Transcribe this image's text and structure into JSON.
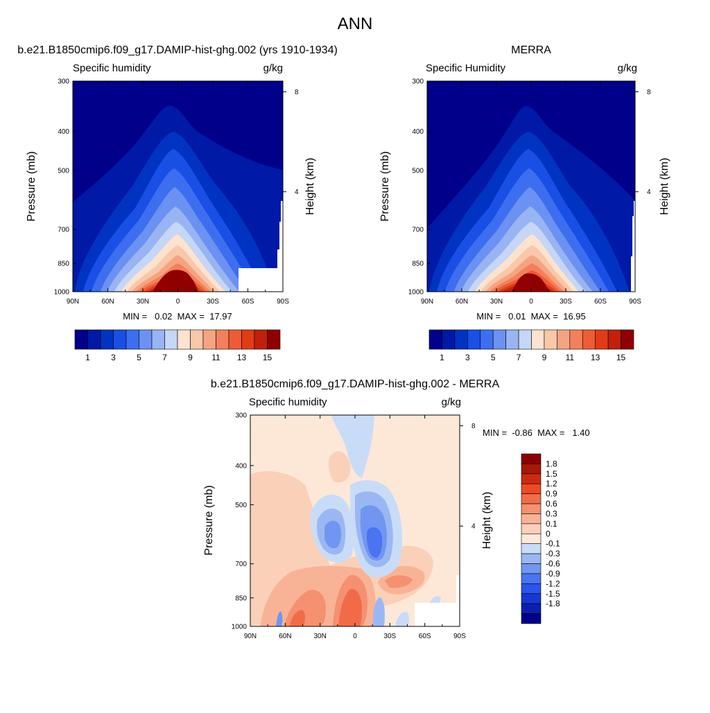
{
  "figure": {
    "title": "ANN"
  },
  "panels": [
    {
      "id": "model",
      "title": "b.e21.B1850cmip6.f09_g17.DAMIP-hist-ghg.002 (yrs 1910-1934)",
      "left_label": "Specific humidity",
      "right_label": "g/kg",
      "ylabel": "Pressure (mb)",
      "y2label": "Height (km)",
      "stats_text": "MIN =   0.02  MAX =  17.97"
    },
    {
      "id": "obs",
      "title": "MERRA",
      "left_label": "Specific Humidity",
      "right_label": "g/kg",
      "ylabel": "Pressure (mb)",
      "y2label": "Height (km)",
      "stats_text": "MIN =   0.01  MAX =  16.95"
    },
    {
      "id": "diff",
      "title": "b.e21.B1850cmip6.f09_g17.DAMIP-hist-ghg.002 - MERRA",
      "left_label": "Specific humidity",
      "right_label": "g/kg",
      "ylabel": "Pressure (mb)",
      "y2label": "Height (km)",
      "stats_text": "MIN =  -0.86  MAX =   1.40"
    }
  ],
  "colors": {
    "humidity_levels": [
      "#00008b",
      "#0019a6",
      "#0033c2",
      "#1a4fe6",
      "#3d6ef0",
      "#6b91f2",
      "#98b4f2",
      "#c5d6f7",
      "#fde3cf",
      "#f9c7aa",
      "#f5a482",
      "#f3805c",
      "#ef5b36",
      "#e23b18",
      "#c2200c",
      "#900000"
    ],
    "diff_levels": [
      "#00008b",
      "#0a1fb0",
      "#1637d6",
      "#2a55ee",
      "#4a74f0",
      "#7196f1",
      "#9bb7f3",
      "#c9dcf7",
      "#fde8d8",
      "#fbd0b8",
      "#f8b396",
      "#f59070",
      "#f26b48",
      "#ee4a24",
      "#cc2a10",
      "#a81808",
      "#8b0000"
    ]
  },
  "chart_data": [
    {
      "panel": "model",
      "type": "heatmap",
      "x_ticks": [
        "90N",
        "60N",
        "30N",
        "0",
        "30S",
        "60S",
        "90S"
      ],
      "x_range": [
        90,
        -90
      ],
      "y_ticks": [
        "300",
        "400",
        "500",
        "700",
        "850",
        "1000"
      ],
      "y_range_mb": [
        1000,
        300
      ],
      "y_scale": "log",
      "y2_ticks": [
        "8",
        "4"
      ],
      "colorbar_labels": [
        "1",
        "3",
        "5",
        "7",
        "9",
        "11",
        "13",
        "15"
      ],
      "contour_levels": [
        1,
        2,
        3,
        4,
        5,
        6,
        7,
        8,
        9,
        10,
        11,
        12,
        13,
        14,
        15
      ],
      "min": 0.02,
      "max": 17.97
    },
    {
      "panel": "obs",
      "type": "heatmap",
      "x_ticks": [
        "90N",
        "60N",
        "30N",
        "0",
        "30S",
        "60S",
        "90S"
      ],
      "x_range": [
        90,
        -90
      ],
      "y_ticks": [
        "300",
        "400",
        "500",
        "700",
        "850",
        "1000"
      ],
      "y_range_mb": [
        1000,
        300
      ],
      "y_scale": "log",
      "y2_ticks": [
        "8",
        "4"
      ],
      "colorbar_labels": [
        "1",
        "3",
        "5",
        "7",
        "9",
        "11",
        "13",
        "15"
      ],
      "contour_levels": [
        1,
        2,
        3,
        4,
        5,
        6,
        7,
        8,
        9,
        10,
        11,
        12,
        13,
        14,
        15
      ],
      "min": 0.01,
      "max": 16.95
    },
    {
      "panel": "diff",
      "type": "heatmap",
      "x_ticks": [
        "90N",
        "60N",
        "30N",
        "0",
        "30S",
        "60S",
        "90S"
      ],
      "x_range": [
        90,
        -90
      ],
      "y_ticks": [
        "300",
        "400",
        "500",
        "700",
        "850",
        "1000"
      ],
      "y_range_mb": [
        1000,
        300
      ],
      "y_scale": "log",
      "y2_ticks": [
        "8",
        "4"
      ],
      "colorbar_labels": [
        "1.8",
        "1.5",
        "1.2",
        "0.9",
        "0.6",
        "0.3",
        "0.1",
        "0",
        "-0.1",
        "-0.3",
        "-0.6",
        "-0.9",
        "-1.2",
        "-1.5",
        "-1.8"
      ],
      "contour_levels": [
        -1.8,
        -1.5,
        -1.2,
        -0.9,
        -0.6,
        -0.3,
        -0.1,
        0,
        0.1,
        0.3,
        0.6,
        0.9,
        1.2,
        1.5,
        1.8
      ],
      "min": -0.86,
      "max": 1.4
    }
  ]
}
